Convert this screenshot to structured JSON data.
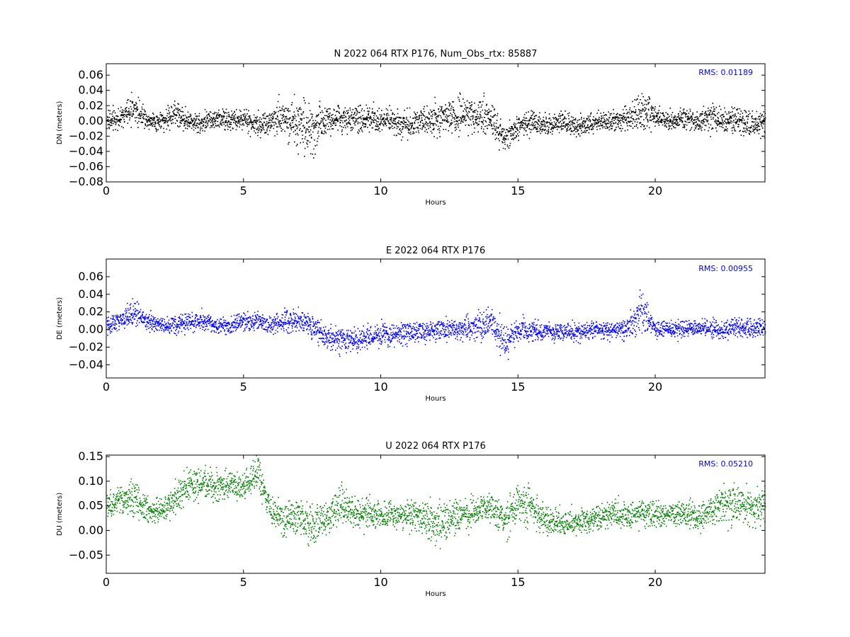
{
  "chart_data": [
    {
      "type": "scatter",
      "title": "N 2022 064 RTX  P176, Num_Obs_rtx: 85887",
      "xlabel": "Hours",
      "ylabel": "DN (meters)",
      "xlim": [
        0,
        24
      ],
      "ylim": [
        -0.08,
        0.075
      ],
      "xticks": [
        0,
        5,
        10,
        15,
        20
      ],
      "xtick_labels": [
        "0",
        "5",
        "10",
        "15",
        "20"
      ],
      "yticks": [
        -0.08,
        -0.06,
        -0.04,
        -0.02,
        0.0,
        0.02,
        0.04,
        0.06
      ],
      "ytick_labels": [
        "−0.08",
        "−0.06",
        "−0.04",
        "−0.02",
        "0.00",
        "0.02",
        "0.04",
        "0.06"
      ],
      "annotation": "RMS:  0.01189",
      "color": "#000000",
      "annotation_color": "#0000ff",
      "grid": false,
      "series_profile": {
        "x": [
          0,
          0.5,
          1.0,
          1.5,
          2.0,
          2.5,
          3.0,
          3.5,
          4.0,
          4.5,
          5.0,
          5.5,
          6.0,
          6.5,
          7.0,
          7.5,
          8.0,
          8.5,
          9.0,
          9.5,
          10.0,
          10.5,
          11.0,
          11.5,
          12.0,
          12.5,
          13.0,
          13.5,
          14.0,
          14.5,
          15.0,
          15.5,
          16.0,
          16.5,
          17.0,
          17.5,
          18.0,
          18.5,
          19.0,
          19.5,
          20.0,
          20.5,
          21.0,
          21.5,
          22.0,
          22.5,
          23.0,
          23.5,
          24.0
        ],
        "y": [
          0.0,
          0.005,
          0.018,
          0.002,
          0.0,
          0.01,
          0.0,
          -0.002,
          0.005,
          0.0,
          0.002,
          -0.005,
          0.0,
          0.005,
          0.0,
          -0.012,
          0.005,
          0.005,
          0.0,
          0.005,
          0.002,
          0.0,
          -0.005,
          0.0,
          0.002,
          0.005,
          0.01,
          0.008,
          0.005,
          -0.025,
          -0.005,
          0.0,
          -0.005,
          0.0,
          -0.005,
          -0.005,
          0.0,
          0.0,
          0.005,
          0.012,
          0.005,
          0.0,
          0.005,
          0.0,
          0.005,
          0.0,
          0.0,
          -0.005,
          -0.002
        ],
        "spread": [
          0.012,
          0.012,
          0.02,
          0.012,
          0.012,
          0.016,
          0.012,
          0.012,
          0.014,
          0.012,
          0.012,
          0.014,
          0.018,
          0.025,
          0.035,
          0.03,
          0.018,
          0.016,
          0.015,
          0.018,
          0.015,
          0.015,
          0.016,
          0.015,
          0.02,
          0.022,
          0.024,
          0.022,
          0.022,
          0.018,
          0.014,
          0.014,
          0.013,
          0.012,
          0.012,
          0.012,
          0.012,
          0.014,
          0.016,
          0.025,
          0.012,
          0.012,
          0.013,
          0.012,
          0.016,
          0.015,
          0.015,
          0.015,
          0.015
        ]
      }
    },
    {
      "type": "scatter",
      "title": "E 2022 064 RTX  P176",
      "xlabel": "Hours",
      "ylabel": "DE (meters)",
      "xlim": [
        0,
        24
      ],
      "ylim": [
        -0.055,
        0.08
      ],
      "xticks": [
        0,
        5,
        10,
        15,
        20
      ],
      "xtick_labels": [
        "0",
        "5",
        "10",
        "15",
        "20"
      ],
      "yticks": [
        -0.04,
        -0.02,
        0.0,
        0.02,
        0.04,
        0.06
      ],
      "ytick_labels": [
        "−0.04",
        "−0.02",
        "0.00",
        "0.02",
        "0.04",
        "0.06"
      ],
      "annotation": "RMS:  0.00955",
      "color": "#0000ff",
      "annotation_color": "#0000ff",
      "grid": false,
      "series_profile": {
        "x": [
          0,
          0.5,
          1.0,
          1.5,
          2.0,
          2.5,
          3.0,
          3.5,
          4.0,
          4.5,
          5.0,
          5.5,
          6.0,
          6.5,
          7.0,
          7.5,
          8.0,
          8.5,
          9.0,
          9.5,
          10.0,
          10.5,
          11.0,
          11.5,
          12.0,
          12.5,
          13.0,
          13.5,
          14.0,
          14.5,
          15.0,
          15.5,
          16.0,
          16.5,
          17.0,
          17.5,
          18.0,
          18.5,
          19.0,
          19.5,
          20.0,
          20.5,
          21.0,
          21.5,
          22.0,
          22.5,
          23.0,
          23.5,
          24.0
        ],
        "y": [
          0.005,
          0.01,
          0.02,
          0.01,
          0.005,
          0.005,
          0.01,
          0.01,
          0.005,
          0.005,
          0.01,
          0.01,
          0.005,
          0.012,
          0.01,
          0.005,
          -0.008,
          -0.012,
          -0.01,
          -0.008,
          -0.005,
          -0.005,
          -0.005,
          -0.002,
          0.0,
          0.0,
          0.002,
          0.005,
          0.008,
          -0.015,
          0.0,
          0.0,
          -0.002,
          -0.002,
          -0.002,
          -0.002,
          0.0,
          0.0,
          0.002,
          0.025,
          0.0,
          0.0,
          0.002,
          0.002,
          0.002,
          0.0,
          0.002,
          0.002,
          0.002
        ],
        "spread": [
          0.01,
          0.01,
          0.015,
          0.01,
          0.008,
          0.009,
          0.01,
          0.01,
          0.009,
          0.008,
          0.01,
          0.009,
          0.009,
          0.012,
          0.012,
          0.012,
          0.013,
          0.012,
          0.012,
          0.012,
          0.012,
          0.011,
          0.011,
          0.01,
          0.01,
          0.01,
          0.012,
          0.016,
          0.02,
          0.02,
          0.013,
          0.01,
          0.009,
          0.009,
          0.009,
          0.009,
          0.009,
          0.009,
          0.01,
          0.02,
          0.009,
          0.009,
          0.01,
          0.009,
          0.01,
          0.01,
          0.01,
          0.011,
          0.011
        ]
      }
    },
    {
      "type": "scatter",
      "title": "U 2022 064 RTX  P176",
      "xlabel": "Hours",
      "ylabel": "DU (meters)",
      "xlim": [
        0,
        24
      ],
      "ylim": [
        -0.087,
        0.153
      ],
      "xticks": [
        0,
        5,
        10,
        15,
        20
      ],
      "xtick_labels": [
        "0",
        "5",
        "10",
        "15",
        "20"
      ],
      "yticks": [
        -0.05,
        0.0,
        0.05,
        0.1,
        0.15
      ],
      "ytick_labels": [
        "−0.05",
        "0.00",
        "0.05",
        "0.10",
        "0.15"
      ],
      "annotation": "RMS:  0.05210",
      "color": "#007f00",
      "annotation_color": "#0000ff",
      "grid": false,
      "series_profile": {
        "x": [
          0,
          0.5,
          1.0,
          1.5,
          2.0,
          2.5,
          3.0,
          3.5,
          4.0,
          4.5,
          5.0,
          5.5,
          6.0,
          6.5,
          7.0,
          7.5,
          8.0,
          8.5,
          9.0,
          9.5,
          10.0,
          10.5,
          11.0,
          11.5,
          12.0,
          12.5,
          13.0,
          13.5,
          14.0,
          14.5,
          15.0,
          15.5,
          16.0,
          16.5,
          17.0,
          17.5,
          18.0,
          18.5,
          19.0,
          19.5,
          20.0,
          20.5,
          21.0,
          21.5,
          22.0,
          22.5,
          23.0,
          23.5,
          24.0
        ],
        "y": [
          0.05,
          0.06,
          0.07,
          0.04,
          0.045,
          0.065,
          0.09,
          0.1,
          0.09,
          0.09,
          0.085,
          0.12,
          0.04,
          0.02,
          0.03,
          0.005,
          0.03,
          0.05,
          0.04,
          0.035,
          0.03,
          0.03,
          0.035,
          0.03,
          0.015,
          0.025,
          0.035,
          0.04,
          0.05,
          0.02,
          0.06,
          0.05,
          0.02,
          0.02,
          0.015,
          0.02,
          0.03,
          0.035,
          0.03,
          0.04,
          0.035,
          0.03,
          0.035,
          0.025,
          0.04,
          0.055,
          0.05,
          0.05,
          0.06
        ],
        "spread": [
          0.025,
          0.025,
          0.035,
          0.025,
          0.025,
          0.028,
          0.03,
          0.03,
          0.03,
          0.03,
          0.025,
          0.03,
          0.03,
          0.035,
          0.035,
          0.04,
          0.035,
          0.035,
          0.03,
          0.03,
          0.028,
          0.028,
          0.03,
          0.03,
          0.04,
          0.035,
          0.035,
          0.03,
          0.03,
          0.035,
          0.04,
          0.035,
          0.025,
          0.025,
          0.025,
          0.025,
          0.025,
          0.025,
          0.025,
          0.025,
          0.025,
          0.025,
          0.025,
          0.025,
          0.03,
          0.035,
          0.035,
          0.035,
          0.035
        ]
      }
    }
  ]
}
